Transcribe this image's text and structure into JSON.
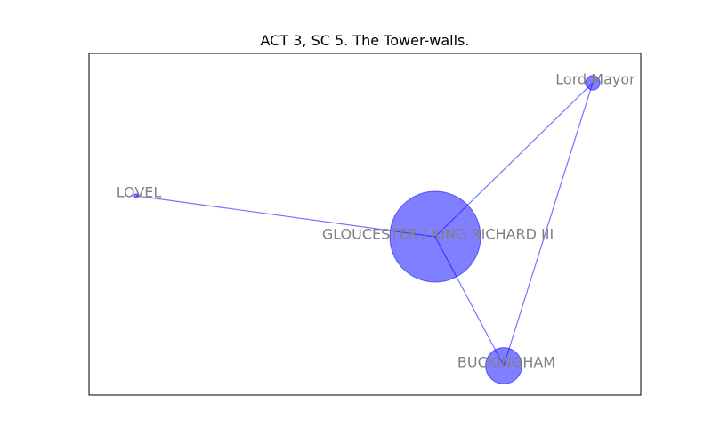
{
  "title": "ACT 3, SC 5. The Tower-walls.",
  "colors": {
    "node_fill": "#0000ff",
    "edge": "#0000ff",
    "label": "#808080",
    "frame": "#000000"
  },
  "network": {
    "nodes": [
      {
        "id": "gloucester",
        "label": "GLOUCESTER / KING RICHARD III",
        "weight": 100
      },
      {
        "id": "buckingham",
        "label": "BUCKINGHAM",
        "weight": 16
      },
      {
        "id": "lord_mayor",
        "label": "Lord Mayor",
        "weight": 2.5
      },
      {
        "id": "lovel",
        "label": "LOVEL",
        "weight": 0.2
      }
    ],
    "edges": [
      {
        "source": "gloucester",
        "target": "lovel"
      },
      {
        "source": "gloucester",
        "target": "lord_mayor"
      },
      {
        "source": "gloucester",
        "target": "buckingham"
      },
      {
        "source": "buckingham",
        "target": "lord_mayor"
      }
    ]
  }
}
